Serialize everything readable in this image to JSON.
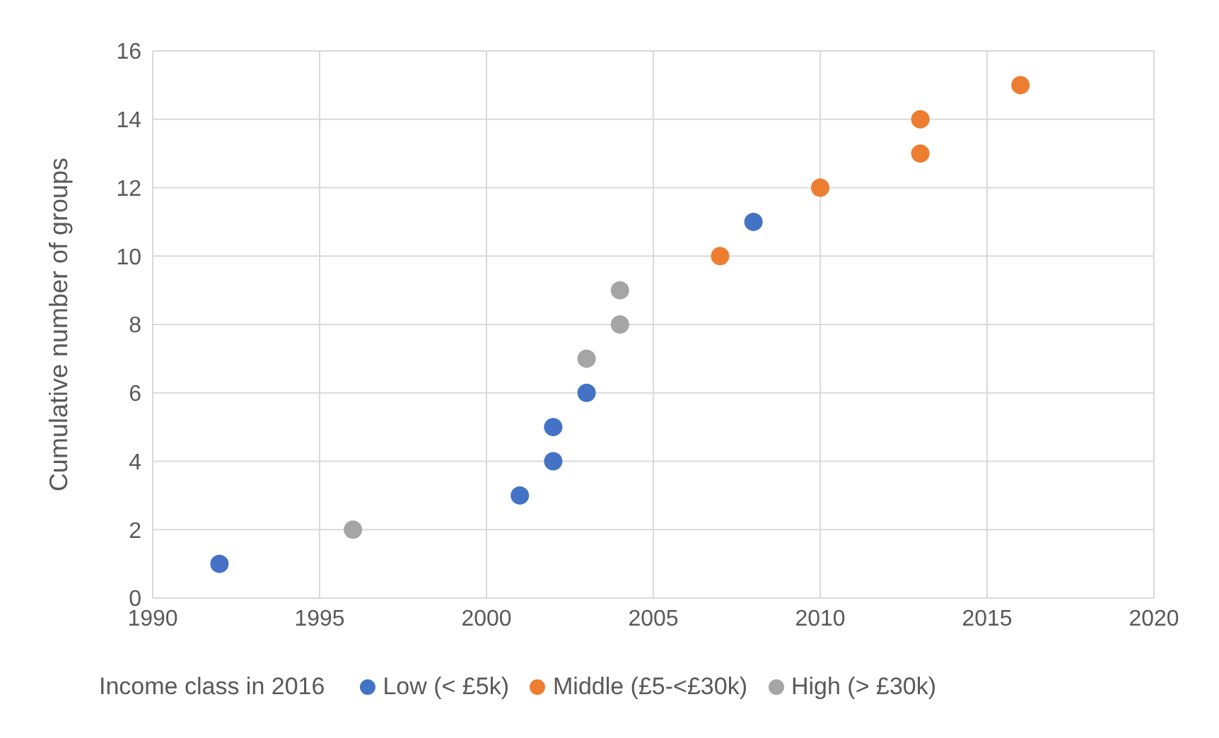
{
  "chart_data": {
    "type": "scatter",
    "ylabel": "Cumulative number of groups",
    "legend_title": "Income class in 2016",
    "legend": "bottom",
    "grid": true,
    "marker": "circle",
    "xlim": [
      1990,
      2020
    ],
    "xticks": [
      1990,
      1995,
      2000,
      2005,
      2010,
      2015,
      2020
    ],
    "ylim": [
      0,
      16
    ],
    "yticks": [
      0,
      2,
      4,
      6,
      8,
      10,
      12,
      14,
      16
    ],
    "series": [
      {
        "name": "Low (< £5k)",
        "color": "#4472c4",
        "x": [
          1992,
          2001,
          2002,
          2002,
          2003,
          2008
        ],
        "values": [
          1,
          3,
          4,
          5,
          6,
          11
        ]
      },
      {
        "name": "Middle (£5-<£30k)",
        "color": "#ed7d31",
        "x": [
          2007,
          2010,
          2013,
          2013,
          2016
        ],
        "values": [
          10,
          12,
          13,
          14,
          15
        ]
      },
      {
        "name": "High (> £30k)",
        "color": "#a5a5a5",
        "x": [
          1996,
          2003,
          2004,
          2004
        ],
        "values": [
          2,
          7,
          8,
          9
        ]
      }
    ]
  }
}
